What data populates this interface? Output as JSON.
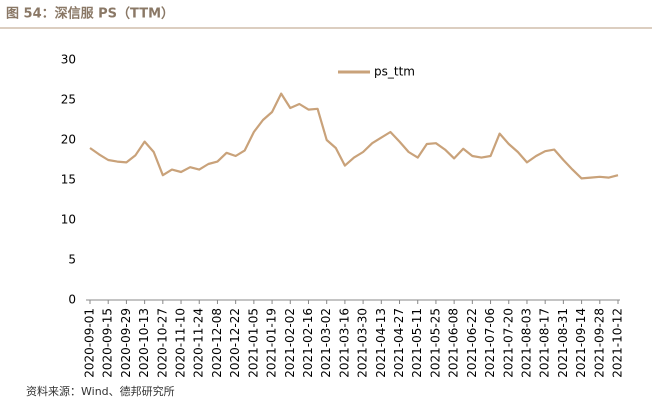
{
  "title": "图 54：深信服 PS（TTM）",
  "source": "资料来源：Wind、德邦研究所",
  "chart_data": {
    "type": "line",
    "x": [
      "2020-09-01",
      "2020-09-08",
      "2020-09-15",
      "2020-09-22",
      "2020-09-29",
      "2020-10-06",
      "2020-10-13",
      "2020-10-20",
      "2020-10-27",
      "2020-11-03",
      "2020-11-10",
      "2020-11-17",
      "2020-11-24",
      "2020-12-01",
      "2020-12-08",
      "2020-12-15",
      "2020-12-22",
      "2020-12-29",
      "2021-01-05",
      "2021-01-12",
      "2021-01-19",
      "2021-01-26",
      "2021-02-02",
      "2021-02-09",
      "2021-02-16",
      "2021-02-23",
      "2021-03-02",
      "2021-03-09",
      "2021-03-16",
      "2021-03-23",
      "2021-03-30",
      "2021-04-06",
      "2021-04-13",
      "2021-04-20",
      "2021-04-27",
      "2021-05-04",
      "2021-05-11",
      "2021-05-18",
      "2021-05-25",
      "2021-06-01",
      "2021-06-08",
      "2021-06-15",
      "2021-06-22",
      "2021-06-29",
      "2021-07-06",
      "2021-07-13",
      "2021-07-20",
      "2021-07-27",
      "2021-08-03",
      "2021-08-10",
      "2021-08-17",
      "2021-08-24",
      "2021-08-31",
      "2021-09-07",
      "2021-09-14",
      "2021-09-21",
      "2021-09-28",
      "2021-10-05",
      "2021-10-12"
    ],
    "series": [
      {
        "name": "ps_ttm",
        "color": "#c9a27a",
        "values": [
          19.0,
          18.2,
          17.5,
          17.3,
          17.2,
          18.1,
          19.8,
          18.5,
          15.6,
          16.3,
          16.0,
          16.6,
          16.3,
          17.0,
          17.3,
          18.4,
          18.0,
          18.7,
          21.0,
          22.5,
          23.5,
          25.8,
          24.0,
          24.5,
          23.8,
          23.9,
          20.0,
          19.0,
          16.8,
          17.8,
          18.5,
          19.6,
          20.3,
          21.0,
          19.8,
          18.5,
          17.8,
          19.5,
          19.6,
          18.8,
          17.7,
          18.9,
          18.0,
          17.8,
          18.0,
          20.8,
          19.5,
          18.5,
          17.2,
          18.0,
          18.6,
          18.8,
          17.5,
          16.3,
          15.2,
          15.3,
          15.4,
          15.3,
          15.6
        ]
      }
    ],
    "xlim": [
      "2020-09-01",
      "2021-10-12"
    ],
    "xticks": [
      "2020-09-01",
      "2020-09-15",
      "2020-09-29",
      "2020-10-13",
      "2020-10-27",
      "2020-11-10",
      "2020-11-24",
      "2020-12-08",
      "2020-12-22",
      "2021-01-05",
      "2021-01-19",
      "2021-02-02",
      "2021-02-16",
      "2021-03-02",
      "2021-03-16",
      "2021-03-30",
      "2021-04-13",
      "2021-04-27",
      "2021-05-11",
      "2021-05-25",
      "2021-06-08",
      "2021-06-22",
      "2021-07-06",
      "2021-07-20",
      "2021-08-03",
      "2021-08-17",
      "2021-08-31",
      "2021-09-14",
      "2021-09-28",
      "2021-10-12"
    ],
    "ylim": [
      0,
      30
    ],
    "yticks": [
      0,
      5,
      10,
      15,
      20,
      25,
      30
    ],
    "legend": "top"
  }
}
